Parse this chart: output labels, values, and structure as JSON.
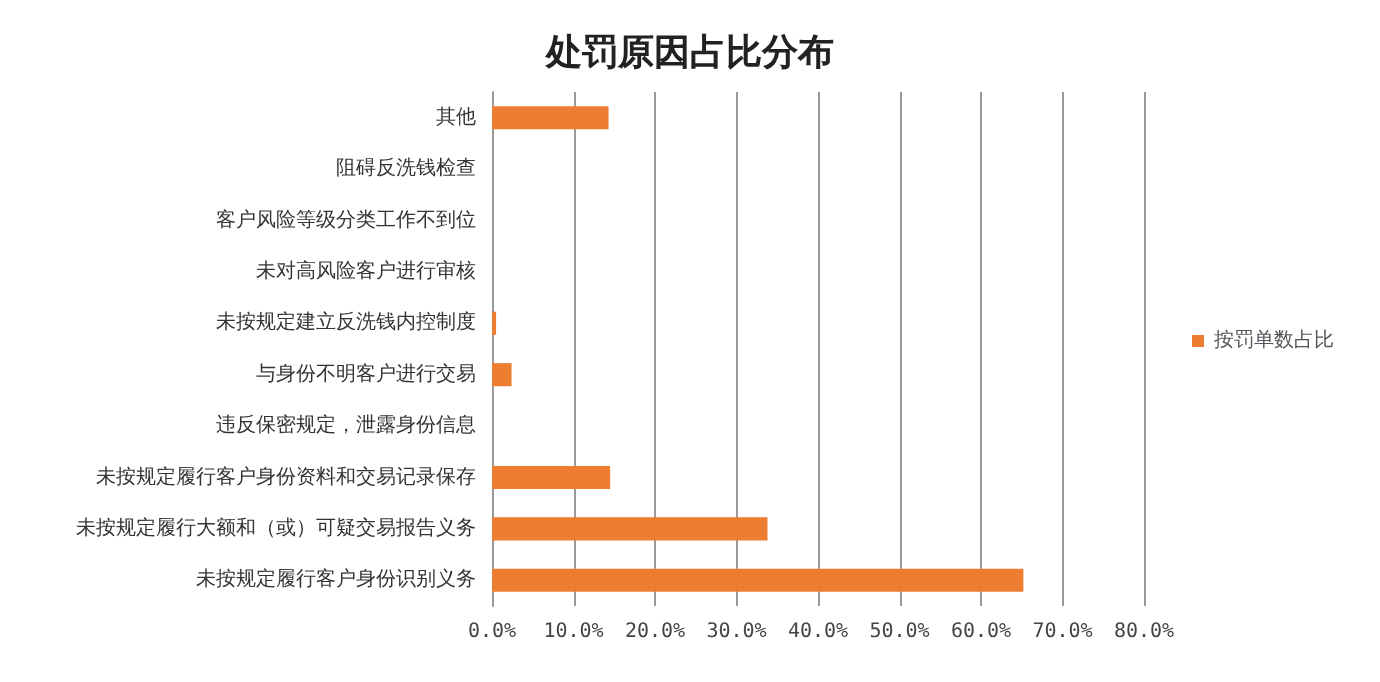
{
  "chart_data": {
    "type": "bar",
    "orientation": "horizontal",
    "title": "处罚原因占比分布",
    "categories": [
      "其他",
      "阻碍反洗钱检查",
      "客户风险等级分类工作不到位",
      "未对高风险客户进行审核",
      "未按规定建立反洗钱内控制度",
      "与身份不明客户进行交易",
      "违反保密规定，泄露身份信息",
      "未按规定履行客户身份资料和交易记录保存",
      "未按规定履行大额和（或）可疑交易报告义务",
      "未按规定履行客户身份识别义务"
    ],
    "series": [
      {
        "name": "按罚单数占比",
        "color": "#ed7d31",
        "values": [
          14.3,
          0,
          0,
          0,
          0.5,
          2.4,
          0,
          14.5,
          33.8,
          65.2
        ]
      }
    ],
    "xlim": [
      0,
      80
    ],
    "xticks": [
      {
        "value": 0,
        "label": "0.0%"
      },
      {
        "value": 10,
        "label": "10.0%"
      },
      {
        "value": 20,
        "label": "20.0%"
      },
      {
        "value": 30,
        "label": "30.0%"
      },
      {
        "value": 40,
        "label": "40.0%"
      },
      {
        "value": 50,
        "label": "50.0%"
      },
      {
        "value": 60,
        "label": "60.0%"
      },
      {
        "value": 70,
        "label": "70.0%"
      },
      {
        "value": 80,
        "label": "80.0%"
      }
    ],
    "grid": "x",
    "legend": "right"
  }
}
